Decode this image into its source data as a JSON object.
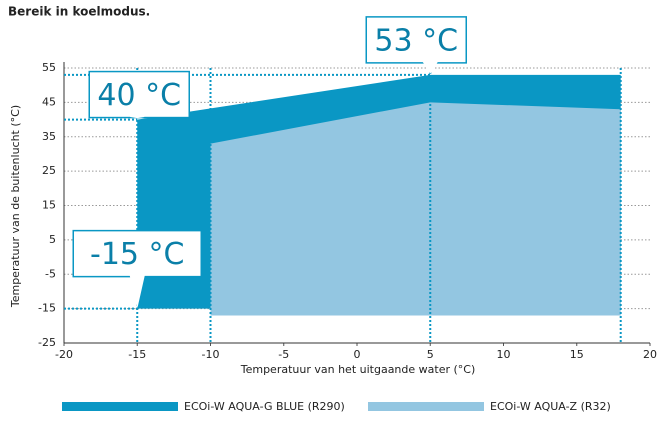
{
  "chart_data": {
    "type": "area",
    "title": "Bereik in koelmodus.",
    "xlabel": "Temperatuur van het uitgaande water (°C)",
    "ylabel": "Temperatuur van de buitenlucht (°C)",
    "xlim": [
      -20,
      20
    ],
    "xticks": [
      -20,
      -15,
      -10,
      -5,
      0,
      5,
      10,
      15,
      20
    ],
    "ylim": [
      -25,
      55
    ],
    "yticks": [
      -25,
      -15,
      -5,
      5,
      15,
      25,
      35,
      45,
      55
    ],
    "grid": true,
    "series": [
      {
        "name": "ECOi-W AQUA-G BLUE (R290)",
        "color": "#0a97c4",
        "x": [
          -15,
          -15,
          5,
          18,
          18
        ],
        "values": [
          -15,
          40,
          53,
          53,
          -15
        ]
      },
      {
        "name": "ECOi-W AQUA-Z (R32)",
        "color": "#93c6e1",
        "x": [
          -10,
          -10,
          5,
          18,
          18
        ],
        "values": [
          -17,
          33,
          45,
          43,
          -17
        ]
      }
    ],
    "reference_lines_x": [
      -15,
      -10,
      5,
      18
    ],
    "annotations": [
      {
        "text": "53 °C",
        "x": 5,
        "y": 53
      },
      {
        "text": "40 °C",
        "x": -15,
        "y": 40
      },
      {
        "text": "-15 °C",
        "x": -15,
        "y": -15
      }
    ]
  }
}
